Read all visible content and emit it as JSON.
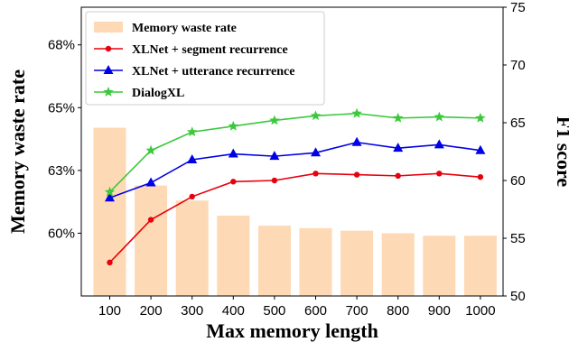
{
  "chart_data": {
    "type": "bar",
    "categories": [
      "100",
      "200",
      "300",
      "400",
      "500",
      "600",
      "700",
      "800",
      "900",
      "1000"
    ],
    "xlabel": "Max memory length",
    "ylabel_left": "Memory waste rate",
    "ylabel_right": "F1 score",
    "ylim_left": [
      57.5,
      69
    ],
    "yticks_left": [
      60,
      62.5,
      65,
      67.5
    ],
    "ytick_labels_left": [
      "60%",
      "63%",
      "65%",
      "68%"
    ],
    "ylim_right": [
      50,
      75
    ],
    "yticks_right": [
      50,
      55,
      60,
      65,
      70,
      75
    ],
    "ytick_labels_right": [
      "50",
      "55",
      "60",
      "65",
      "70",
      "75"
    ],
    "legend_position": "upper-left",
    "series": [
      {
        "name": "Memory waste rate",
        "kind": "bar",
        "axis": "left",
        "color": "#fdd9b5",
        "values": [
          64.2,
          61.9,
          61.3,
          60.7,
          60.3,
          60.2,
          60.1,
          60.0,
          59.9,
          59.9
        ]
      },
      {
        "name": "XLNet + segment recurrence",
        "kind": "line",
        "axis": "right",
        "marker": "circle",
        "color": "#e8000b",
        "values": [
          52.9,
          56.6,
          58.6,
          59.9,
          60.0,
          60.6,
          60.5,
          60.4,
          60.6,
          60.3
        ]
      },
      {
        "name": "XLNet + utterance recurrence",
        "kind": "line",
        "axis": "right",
        "marker": "triangle",
        "color": "#0000e6",
        "values": [
          58.5,
          59.8,
          61.8,
          62.3,
          62.1,
          62.4,
          63.3,
          62.8,
          63.1,
          62.6
        ]
      },
      {
        "name": "DialogXL",
        "kind": "line",
        "axis": "right",
        "marker": "star",
        "color": "#3cc83c",
        "values": [
          59.0,
          62.6,
          64.2,
          64.7,
          65.2,
          65.6,
          65.8,
          65.4,
          65.5,
          65.4
        ]
      }
    ]
  }
}
